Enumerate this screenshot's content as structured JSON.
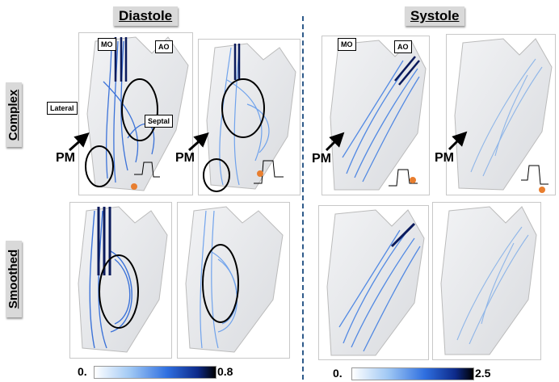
{
  "titles": {
    "diastole": "Diastole",
    "systole": "Systole"
  },
  "rows": {
    "complex": "Complex",
    "smoothed": "Smoothed"
  },
  "labels": {
    "mo": "MO",
    "ao": "AO",
    "lateral": "Lateral",
    "septal": "Septal",
    "pm": "PM"
  },
  "colorbars": {
    "diastole": {
      "min": "0.",
      "max": "0.8"
    },
    "systole": {
      "min": "0.",
      "max": "2.5"
    }
  },
  "colors": {
    "dark": "#0a1a5c",
    "mid": "#1f5fd6",
    "light": "#8ab8f0",
    "marker": "#e87e2f",
    "divider": "#2e5a8a"
  }
}
